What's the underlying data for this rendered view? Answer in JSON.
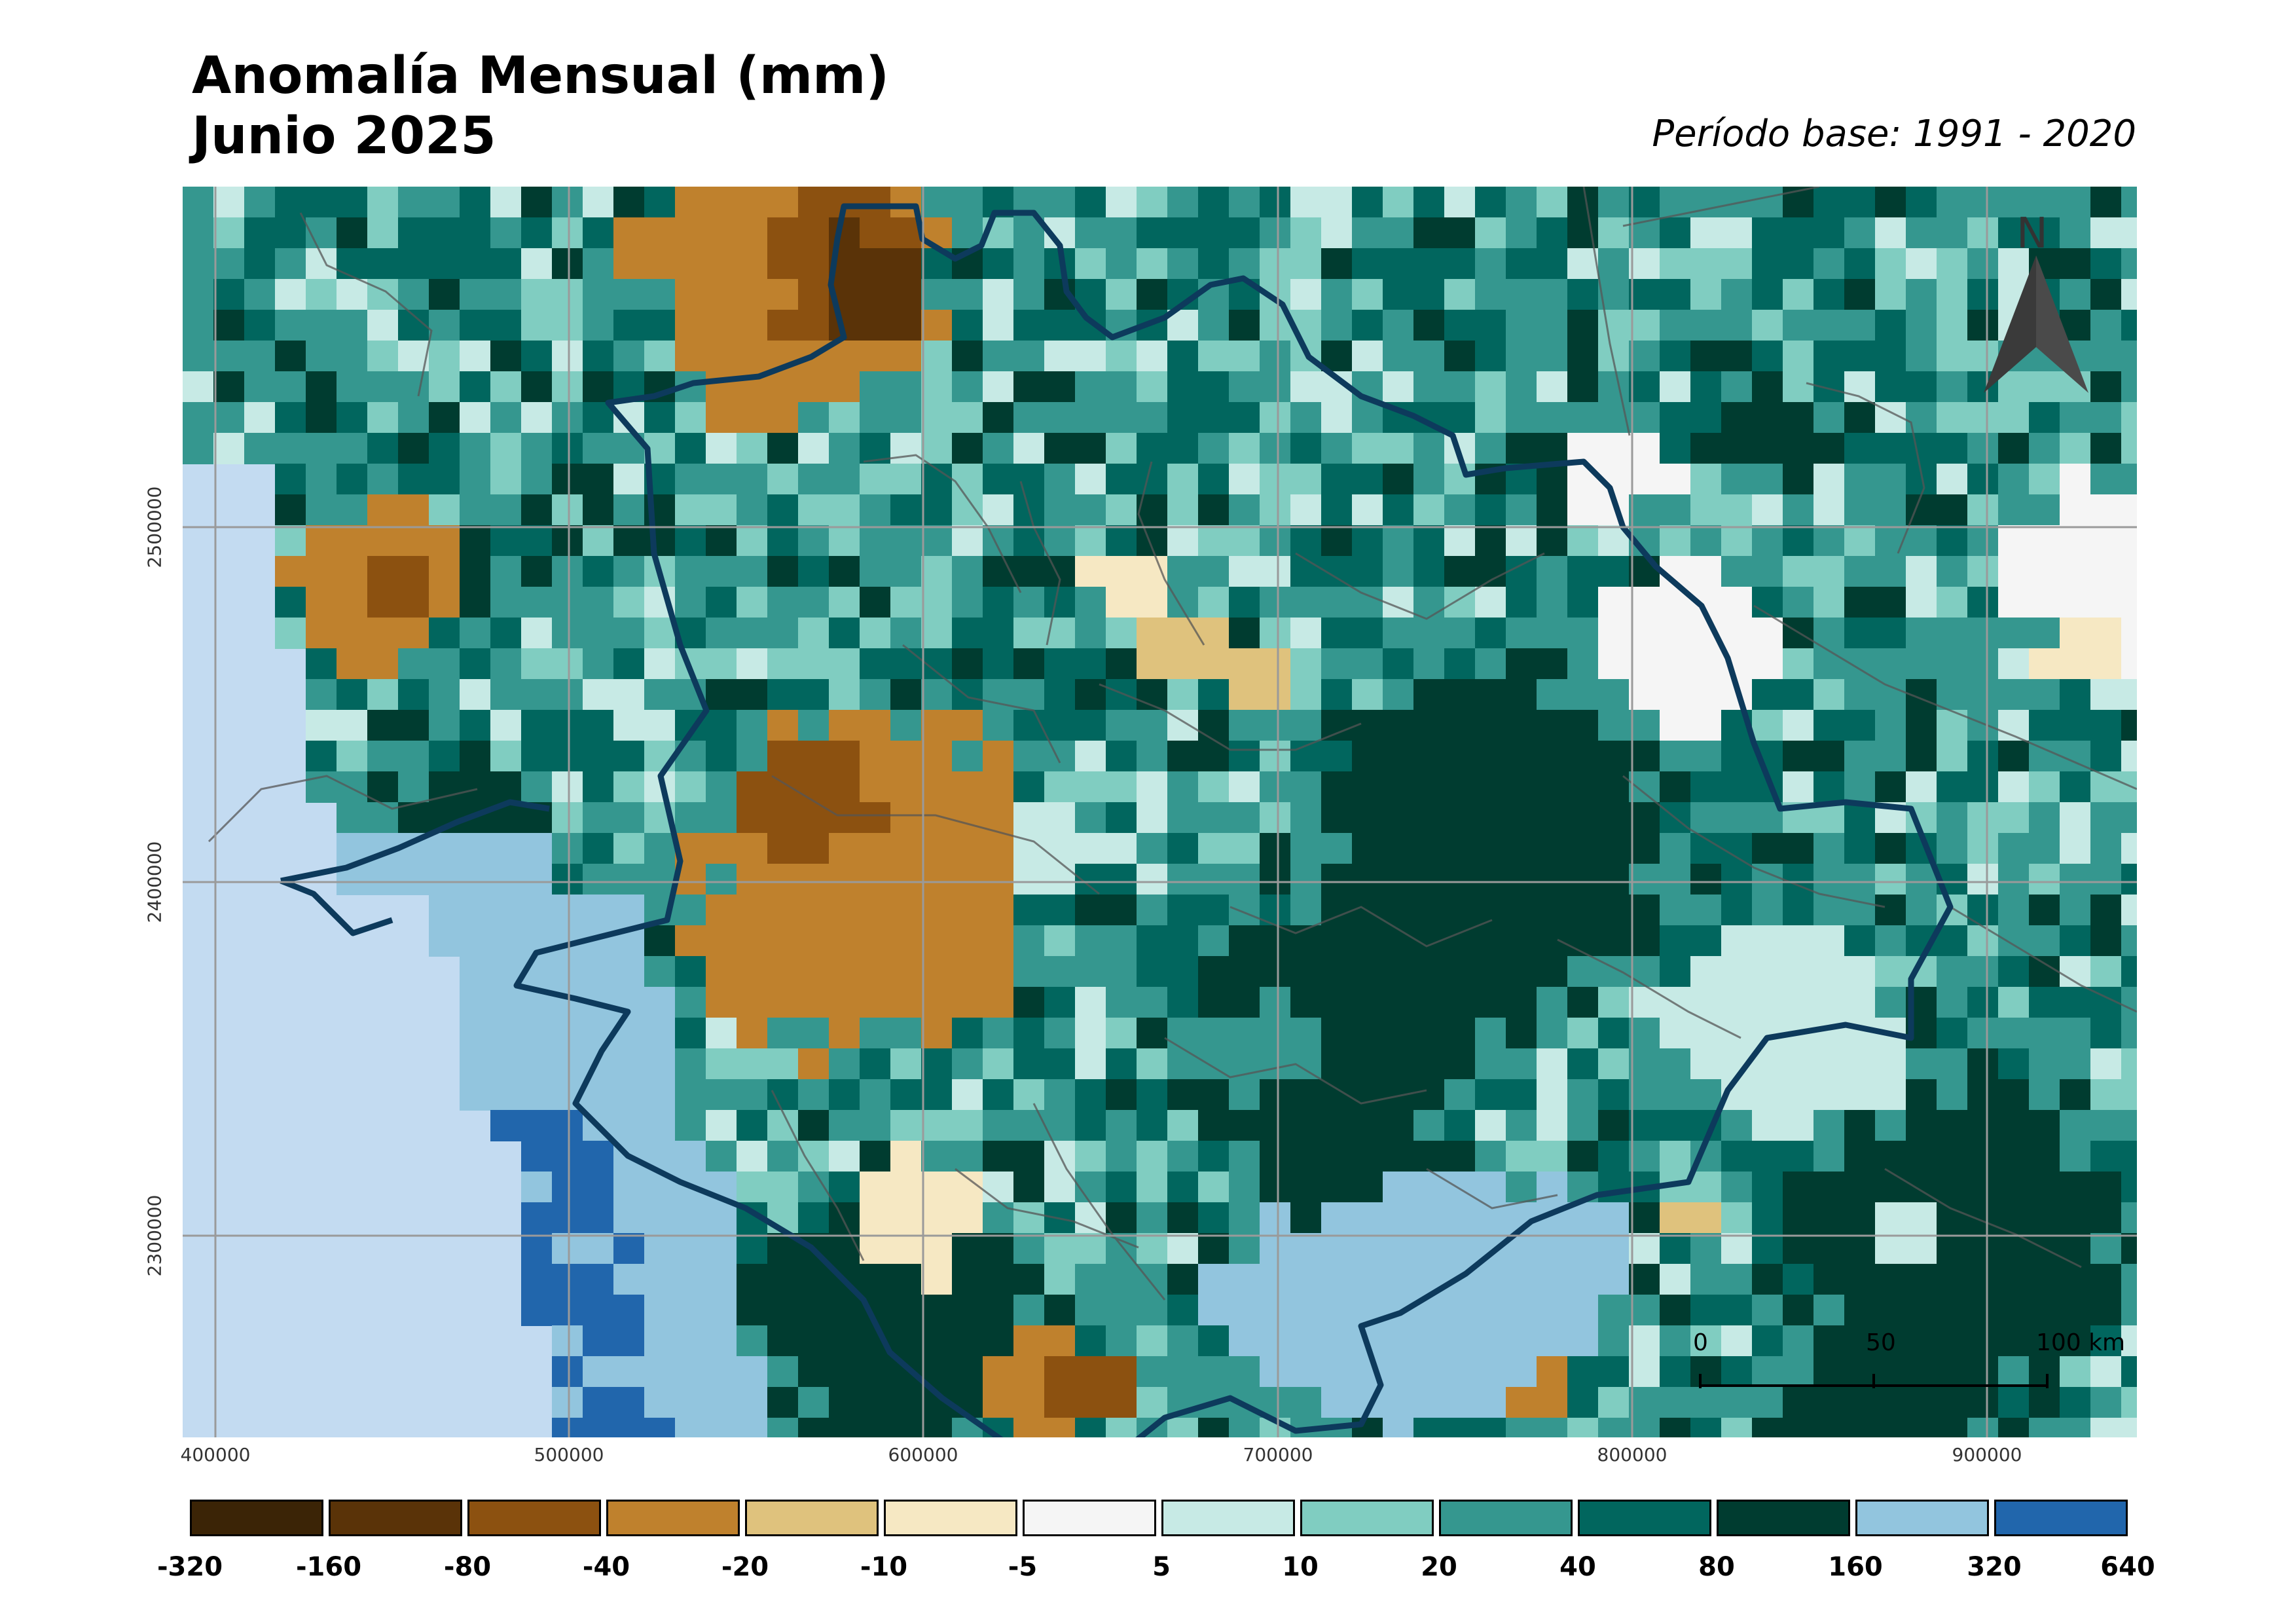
{
  "title": {
    "line1": "Anomalía Mensual (mm)",
    "line2": "Junio 2025"
  },
  "period": "Período base: 1991 - 2020",
  "map": {
    "x_ticks": [
      "400000",
      "500000",
      "600000",
      "700000",
      "800000",
      "900000"
    ],
    "y_ticks": [
      "2500000",
      "2400000",
      "2300000"
    ],
    "north_label": "N",
    "scale_labels": [
      "0",
      "50",
      "100 km"
    ],
    "colors": {
      "sea": "#c3dbf1",
      "border_state": "#0d3a5c",
      "border_municipal": "#555555",
      "grid": "#9a9a9a"
    }
  },
  "legend": {
    "classes": [
      {
        "color": "#3b2406",
        "label": "-320"
      },
      {
        "color": "#5a3308",
        "label": "-160"
      },
      {
        "color": "#8c5110",
        "label": "-80"
      },
      {
        "color": "#bf812d",
        "label": "-40"
      },
      {
        "color": "#dfc27d",
        "label": "-20"
      },
      {
        "color": "#f6e8c3",
        "label": "-10"
      },
      {
        "color": "#f5f5f5",
        "label": "-5"
      },
      {
        "color": "#c7eae5",
        "label": "5"
      },
      {
        "color": "#80cdc1",
        "label": "10"
      },
      {
        "color": "#35978f",
        "label": "20"
      },
      {
        "color": "#01665e",
        "label": "40"
      },
      {
        "color": "#003c30",
        "label": "80"
      },
      {
        "color": "#92c5de",
        "label": "160"
      },
      {
        "color": "#2166ac",
        "label": "320"
      }
    ],
    "last_label": "640"
  }
}
